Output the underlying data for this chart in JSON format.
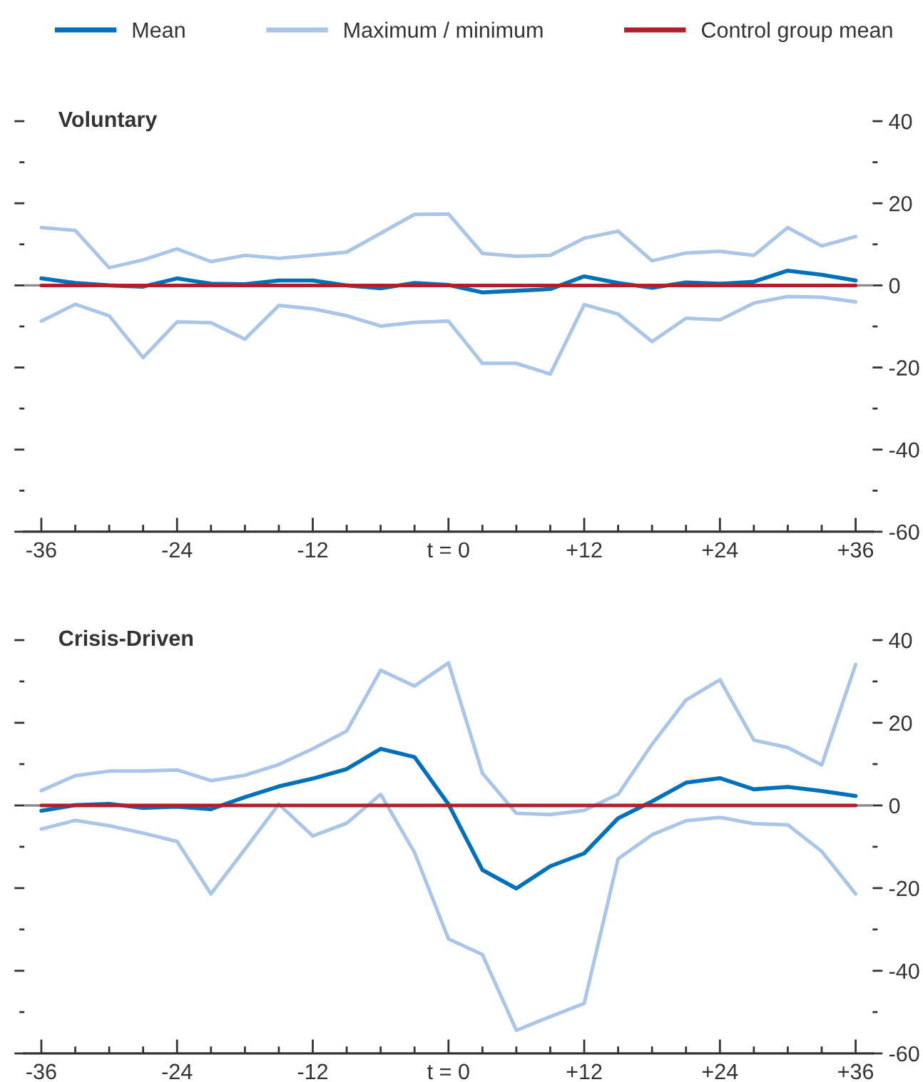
{
  "chart_data": [
    {
      "type": "line",
      "title": "Voluntary",
      "x": [
        -36,
        -33,
        -30,
        -27,
        -24,
        -21,
        -18,
        -15,
        -12,
        -9,
        -6,
        -3,
        0,
        3,
        6,
        9,
        12,
        15,
        18,
        21,
        24,
        27,
        30,
        33,
        36
      ],
      "series": [
        {
          "name": "Mean",
          "color": "#0070b8",
          "values": [
            1.7,
            0.6,
            0,
            -0.3,
            1.7,
            0.4,
            0.3,
            1.2,
            1.2,
            0,
            -0.7,
            0.6,
            0.1,
            -1.7,
            -1.3,
            -0.9,
            2.2,
            0.6,
            -0.6,
            0.7,
            0.4,
            0.9,
            3.6,
            2.6,
            1.2
          ]
        },
        {
          "name": "Maximum / minimum",
          "color": "#a9c5e8",
          "values": [
            14.1,
            13.4,
            4.3,
            6.2,
            8.9,
            5.8,
            7.3,
            6.6,
            7.3,
            8.1,
            12.7,
            17.3,
            17.4,
            7.8,
            7.1,
            7.3,
            11.5,
            13.2,
            6.0,
            7.9,
            8.3,
            7.3,
            14.1,
            9.6,
            11.9
          ]
        },
        {
          "color": "#a9c5e8",
          "values": [
            -8.7,
            -4.6,
            -7.4,
            -17.6,
            -8.9,
            -9.1,
            -13.1,
            -4.9,
            -5.7,
            -7.4,
            -9.9,
            -9.0,
            -8.7,
            -19.0,
            -19.0,
            -21.6,
            -4.7,
            -7.0,
            -13.7,
            -8.0,
            -8.4,
            -4.3,
            -2.7,
            -2.9,
            -4.0
          ]
        },
        {
          "name": "Control group mean",
          "color": "#b0202a",
          "values": [
            0,
            0,
            0,
            0,
            0,
            0,
            0,
            0,
            0,
            0,
            0,
            0,
            0,
            0,
            0,
            0,
            0,
            0,
            0,
            0,
            0,
            0,
            0,
            0,
            0
          ]
        }
      ],
      "xlim": [
        -37.5,
        37.5
      ],
      "xticks": [
        -36,
        {
          "value": -33,
          "label": null
        },
        {
          "value": -30,
          "label": null
        },
        {
          "value": -27,
          "label": null
        },
        -24,
        {
          "value": -21,
          "label": null
        },
        {
          "value": -18,
          "label": null
        },
        {
          "value": -15,
          "label": null
        },
        -12,
        {
          "value": -9,
          "label": null
        },
        {
          "value": -6,
          "label": null
        },
        {
          "value": -3,
          "label": null
        },
        {
          "value": 0,
          "label": "t = 0"
        },
        {
          "value": 3,
          "label": null
        },
        {
          "value": 6,
          "label": null
        },
        {
          "value": 9,
          "label": null
        },
        {
          "value": 12,
          "label": "+12"
        },
        {
          "value": 15,
          "label": null
        },
        {
          "value": 18,
          "label": null
        },
        {
          "value": 21,
          "label": null
        },
        {
          "value": 24,
          "label": "+24"
        },
        {
          "value": 27,
          "label": null
        },
        {
          "value": 30,
          "label": null
        },
        {
          "value": 33,
          "label": null
        },
        {
          "value": 36,
          "label": "+36"
        }
      ],
      "ylim": [
        -60,
        40
      ],
      "yticks": [
        40,
        {
          "value": 30,
          "label": null
        },
        20,
        {
          "value": 10,
          "label": null
        },
        0,
        {
          "value": -10,
          "label": null
        },
        -20,
        {
          "value": -30,
          "label": null
        },
        -40,
        {
          "value": -50,
          "label": null
        },
        -60
      ],
      "ref_lines": [
        {
          "axis": "y",
          "value": 0,
          "color": "#8c8c8c"
        }
      ],
      "legend": "top",
      "marker": "none",
      "line_style": "solid"
    },
    {
      "type": "line",
      "title": "Crisis-Driven",
      "x": [
        -36,
        -33,
        -30,
        -27,
        -24,
        -21,
        -18,
        -15,
        -12,
        -9,
        -6,
        -3,
        0,
        3,
        6,
        9,
        12,
        15,
        18,
        21,
        24,
        27,
        30,
        33,
        36
      ],
      "series": [
        {
          "color": "#0070b8",
          "values": [
            -1.3,
            0.1,
            0.4,
            -0.6,
            -0.3,
            -0.9,
            2.0,
            4.6,
            6.5,
            8.8,
            13.7,
            11.7,
            0.3,
            -15.6,
            -20.1,
            -14.7,
            -11.6,
            -3.1,
            1.0,
            5.5,
            6.6,
            3.9,
            4.5,
            3.5,
            2.3
          ]
        },
        {
          "color": "#a9c5e8",
          "values": [
            3.6,
            7.2,
            8.3,
            8.3,
            8.6,
            6.0,
            7.3,
            9.9,
            13.7,
            18.0,
            32.7,
            28.9,
            34.5,
            7.8,
            -1.9,
            -2.2,
            -1.2,
            2.7,
            14.8,
            25.5,
            30.4,
            15.8,
            14.0,
            9.8,
            34.1
          ]
        },
        {
          "color": "#a9c5e8",
          "values": [
            -5.7,
            -3.6,
            -4.9,
            -6.7,
            -8.7,
            -21.4,
            -10.6,
            0.3,
            -7.4,
            -4.3,
            2.7,
            -11.4,
            -32.3,
            -36.1,
            -54.4,
            -51.1,
            -47.9,
            -12.9,
            -7.1,
            -3.7,
            -2.9,
            -4.4,
            -4.7,
            -11.1,
            -21.4
          ]
        },
        {
          "color": "#b0202a",
          "values": [
            0,
            0,
            0,
            0,
            0,
            0,
            0,
            0,
            0,
            0,
            0,
            0,
            0,
            0,
            0,
            0,
            0,
            0,
            0,
            0,
            0,
            0,
            0,
            0,
            0
          ]
        }
      ],
      "xlim": [
        -37.5,
        37.5
      ],
      "xticks": [
        -36,
        {
          "value": -33,
          "label": null
        },
        {
          "value": -30,
          "label": null
        },
        {
          "value": -27,
          "label": null
        },
        -24,
        {
          "value": -21,
          "label": null
        },
        {
          "value": -18,
          "label": null
        },
        {
          "value": -15,
          "label": null
        },
        -12,
        {
          "value": -9,
          "label": null
        },
        {
          "value": -6,
          "label": null
        },
        {
          "value": -3,
          "label": null
        },
        {
          "value": 0,
          "label": "t = 0"
        },
        {
          "value": 3,
          "label": null
        },
        {
          "value": 6,
          "label": null
        },
        {
          "value": 9,
          "label": null
        },
        {
          "value": 12,
          "label": "+12"
        },
        {
          "value": 15,
          "label": null
        },
        {
          "value": 18,
          "label": null
        },
        {
          "value": 21,
          "label": null
        },
        {
          "value": 24,
          "label": "+24"
        },
        {
          "value": 27,
          "label": null
        },
        {
          "value": 30,
          "label": null
        },
        {
          "value": 33,
          "label": null
        },
        {
          "value": 36,
          "label": "+36"
        }
      ],
      "ylim": [
        -60,
        40
      ],
      "yticks": [
        40,
        {
          "value": 30,
          "label": null
        },
        20,
        {
          "value": 10,
          "label": null
        },
        0,
        {
          "value": -10,
          "label": null
        },
        -20,
        {
          "value": -30,
          "label": null
        },
        -40,
        {
          "value": -50,
          "label": null
        },
        -60
      ],
      "ref_lines": [
        {
          "axis": "y",
          "value": 0,
          "color": "#8c8c8c"
        }
      ],
      "marker": "none",
      "line_style": "solid"
    }
  ]
}
